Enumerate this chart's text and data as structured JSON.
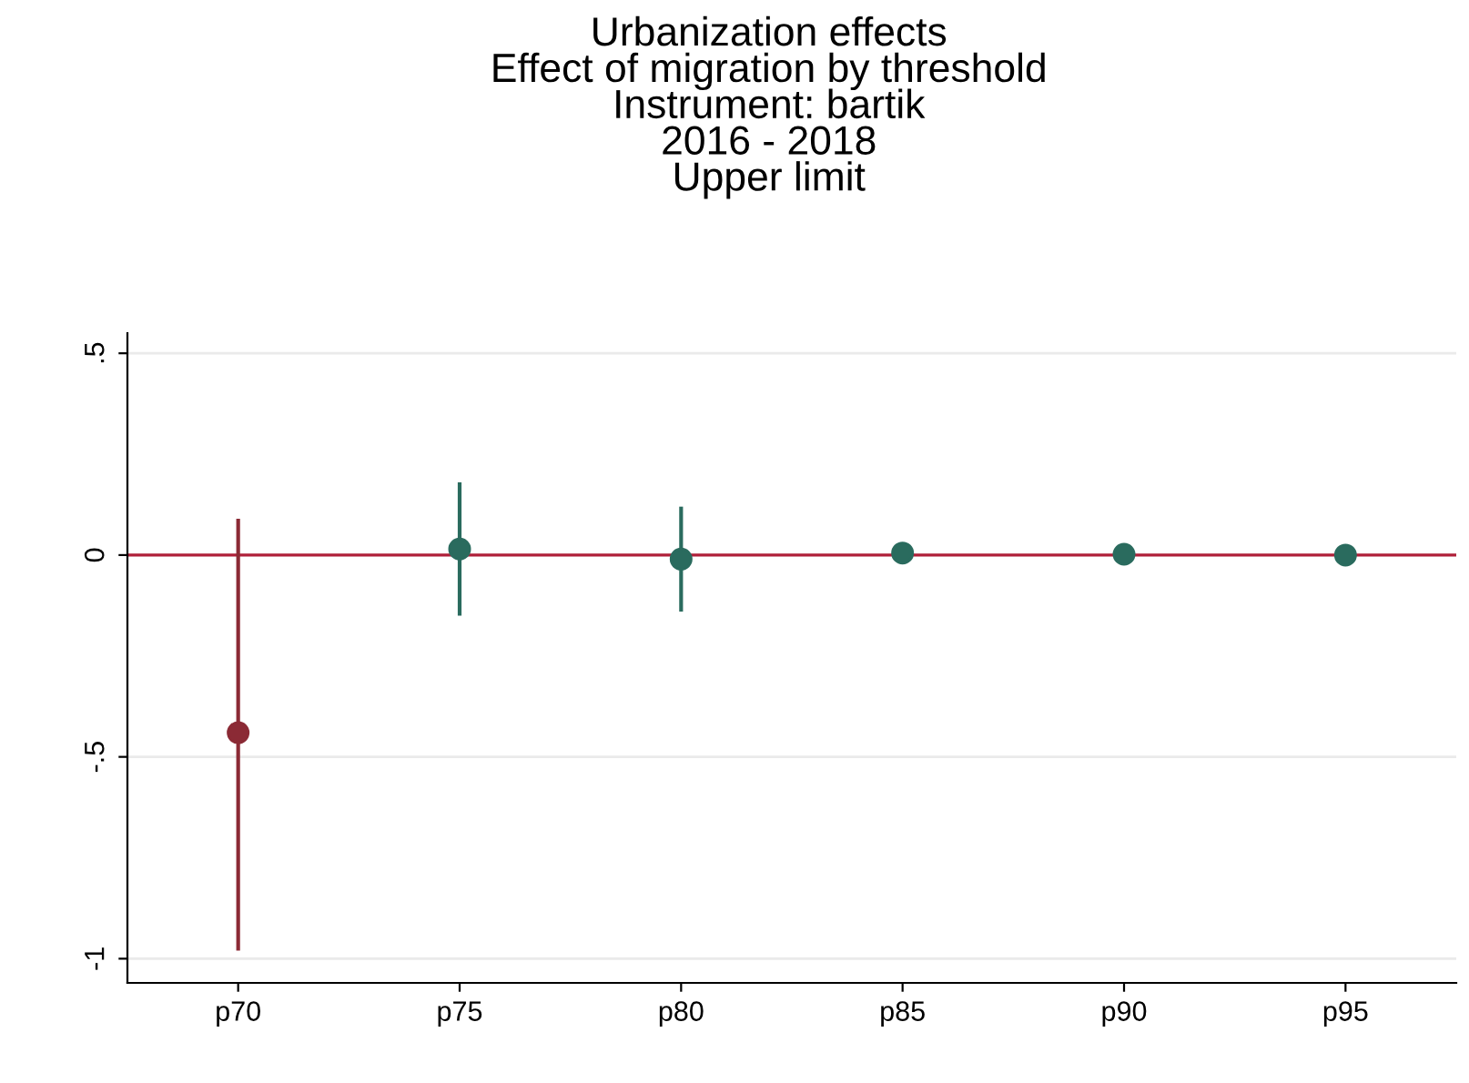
{
  "chart_data": {
    "type": "scatter",
    "title": "Urbanization effects\nEffect of migration by threshold\nInstrument: bartik\n2016 - 2018\nUpper limit",
    "categories": [
      "p70",
      "p75",
      "p80",
      "p85",
      "p90",
      "p95"
    ],
    "values": [
      -0.44,
      0.015,
      -0.01,
      0.005,
      0.002,
      0.0
    ],
    "colors": [
      "#8b2a35",
      "#2a6b5e",
      "#2a6b5e",
      "#2a6b5e",
      "#2a6b5e",
      "#2a6b5e"
    ],
    "errors": [
      [
        -0.98,
        0.09
      ],
      [
        -0.15,
        0.18
      ],
      [
        -0.14,
        0.12
      ],
      [
        -0.01,
        0.02
      ],
      null,
      null
    ],
    "ylim": [
      -1.06,
      0.55
    ],
    "yticks": [
      -1,
      {
        "value": -0.5,
        "label": "-.5"
      },
      0,
      {
        "value": 0.5,
        "label": ".5"
      }
    ],
    "ref_lines": [
      {
        "axis": "y",
        "value": 0,
        "color": "#b0203a"
      }
    ],
    "grid": "y",
    "marker": "circle",
    "legend": false
  }
}
